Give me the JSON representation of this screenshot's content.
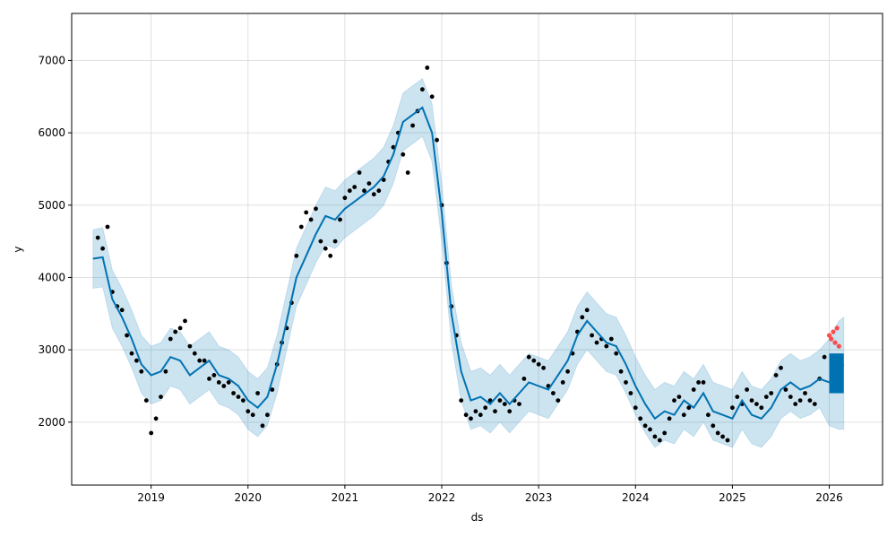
{
  "chart_data": {
    "type": "line",
    "title": "",
    "xlabel": "ds",
    "ylabel": "y",
    "xlim": [
      2018.18,
      2026.55
    ],
    "ylim": [
      1130,
      7650
    ],
    "grid": true,
    "x_ticks": [
      2019,
      2020,
      2021,
      2022,
      2023,
      2024,
      2025,
      2026
    ],
    "x_tick_labels": [
      "2019",
      "2020",
      "2021",
      "2022",
      "2023",
      "2024",
      "2025",
      "2026"
    ],
    "y_ticks": [
      2000,
      3000,
      4000,
      5000,
      6000,
      7000
    ],
    "y_tick_labels": [
      "2000",
      "3000",
      "4000",
      "5000",
      "6000",
      "7000"
    ],
    "colors": {
      "observed": "#000000",
      "forecast": "#0072B2",
      "interval": "#0072B2",
      "future": "#ff3333",
      "grid": "#e0e0e0"
    },
    "forecast_series": {
      "x": [
        2018.4,
        2018.5,
        2018.6,
        2018.7,
        2018.8,
        2018.9,
        2019.0,
        2019.1,
        2019.2,
        2019.3,
        2019.4,
        2019.5,
        2019.6,
        2019.7,
        2019.8,
        2019.9,
        2020.0,
        2020.1,
        2020.2,
        2020.3,
        2020.4,
        2020.5,
        2020.6,
        2020.7,
        2020.8,
        2020.9,
        2021.0,
        2021.1,
        2021.2,
        2021.3,
        2021.4,
        2021.5,
        2021.6,
        2021.7,
        2021.8,
        2021.9,
        2022.0,
        2022.1,
        2022.2,
        2022.3,
        2022.4,
        2022.5,
        2022.6,
        2022.7,
        2022.8,
        2022.9,
        2023.0,
        2023.1,
        2023.2,
        2023.3,
        2023.4,
        2023.5,
        2023.6,
        2023.7,
        2023.8,
        2023.9,
        2024.0,
        2024.1,
        2024.2,
        2024.3,
        2024.4,
        2024.5,
        2024.6,
        2024.7,
        2024.8,
        2024.9,
        2025.0,
        2025.1,
        2025.2,
        2025.3,
        2025.4,
        2025.5,
        2025.6,
        2025.7,
        2025.8,
        2025.9,
        2026.0,
        2026.1,
        2026.15
      ],
      "y": [
        4260,
        4280,
        3700,
        3450,
        3150,
        2800,
        2650,
        2700,
        2900,
        2850,
        2650,
        2750,
        2850,
        2650,
        2600,
        2500,
        2300,
        2200,
        2350,
        2800,
        3400,
        4000,
        4300,
        4600,
        4850,
        4800,
        4950,
        5050,
        5150,
        5250,
        5400,
        5700,
        6150,
        6250,
        6350,
        6000,
        4900,
        3500,
        2700,
        2300,
        2350,
        2250,
        2400,
        2250,
        2400,
        2550,
        2500,
        2450,
        2650,
        2850,
        3200,
        3400,
        3250,
        3100,
        3050,
        2800,
        2500,
        2250,
        2050,
        2150,
        2100,
        2300,
        2200,
        2400,
        2150,
        2100,
        2050,
        2300,
        2100,
        2050,
        2200,
        2450,
        2550,
        2450,
        2500,
        2600,
        2550,
        2750,
        2800
      ],
      "lower": [
        3850,
        3870,
        3300,
        3050,
        2750,
        2400,
        2250,
        2300,
        2500,
        2450,
        2250,
        2350,
        2450,
        2250,
        2200,
        2100,
        1900,
        1800,
        1950,
        2400,
        3000,
        3600,
        3900,
        4200,
        4450,
        4400,
        4550,
        4650,
        4750,
        4850,
        5000,
        5300,
        5750,
        5850,
        5950,
        5600,
        4500,
        3100,
        2300,
        1900,
        1950,
        1850,
        2000,
        1850,
        2000,
        2150,
        2100,
        2050,
        2250,
        2450,
        2800,
        3000,
        2850,
        2700,
        2650,
        2400,
        2100,
        1850,
        1650,
        1750,
        1700,
        1900,
        1800,
        2000,
        1750,
        1700,
        1650,
        1900,
        1700,
        1650,
        1800,
        2050,
        2150,
        2050,
        2100,
        2200,
        1950,
        1900,
        1900
      ],
      "upper": [
        4660,
        4690,
        4100,
        3850,
        3550,
        3200,
        3050,
        3100,
        3300,
        3250,
        3050,
        3150,
        3250,
        3050,
        3000,
        2900,
        2700,
        2600,
        2750,
        3200,
        3800,
        4400,
        4700,
        5000,
        5250,
        5200,
        5350,
        5450,
        5550,
        5650,
        5800,
        6100,
        6550,
        6650,
        6750,
        6400,
        5300,
        3900,
        3100,
        2700,
        2750,
        2650,
        2800,
        2650,
        2800,
        2950,
        2900,
        2850,
        3050,
        3250,
        3600,
        3800,
        3650,
        3500,
        3450,
        3200,
        2900,
        2650,
        2450,
        2550,
        2500,
        2700,
        2600,
        2800,
        2550,
        2500,
        2450,
        2700,
        2500,
        2450,
        2600,
        2850,
        2950,
        2850,
        2900,
        3000,
        3150,
        3400,
        3450
      ]
    },
    "observed_series": {
      "x": [
        2018.45,
        2018.5,
        2018.55,
        2018.6,
        2018.65,
        2018.7,
        2018.75,
        2018.8,
        2018.85,
        2018.9,
        2018.95,
        2019.0,
        2019.05,
        2019.1,
        2019.15,
        2019.2,
        2019.25,
        2019.3,
        2019.35,
        2019.4,
        2019.45,
        2019.5,
        2019.55,
        2019.6,
        2019.65,
        2019.7,
        2019.75,
        2019.8,
        2019.85,
        2019.9,
        2019.95,
        2020.0,
        2020.05,
        2020.1,
        2020.15,
        2020.2,
        2020.25,
        2020.3,
        2020.35,
        2020.4,
        2020.45,
        2020.5,
        2020.55,
        2020.6,
        2020.65,
        2020.7,
        2020.75,
        2020.8,
        2020.85,
        2020.9,
        2020.95,
        2021.0,
        2021.05,
        2021.1,
        2021.15,
        2021.2,
        2021.25,
        2021.3,
        2021.35,
        2021.4,
        2021.45,
        2021.5,
        2021.55,
        2021.6,
        2021.65,
        2021.7,
        2021.75,
        2021.8,
        2021.85,
        2021.9,
        2021.95,
        2022.0,
        2022.05,
        2022.1,
        2022.15,
        2022.2,
        2022.25,
        2022.3,
        2022.35,
        2022.4,
        2022.45,
        2022.5,
        2022.55,
        2022.6,
        2022.65,
        2022.7,
        2022.75,
        2022.8,
        2022.85,
        2022.9,
        2022.95,
        2023.0,
        2023.05,
        2023.1,
        2023.15,
        2023.2,
        2023.25,
        2023.3,
        2023.35,
        2023.4,
        2023.45,
        2023.5,
        2023.55,
        2023.6,
        2023.65,
        2023.7,
        2023.75,
        2023.8,
        2023.85,
        2023.9,
        2023.95,
        2024.0,
        2024.05,
        2024.1,
        2024.15,
        2024.2,
        2024.25,
        2024.3,
        2024.35,
        2024.4,
        2024.45,
        2024.5,
        2024.55,
        2024.6,
        2024.65,
        2024.7,
        2024.75,
        2024.8,
        2024.85,
        2024.9,
        2024.95,
        2025.0,
        2025.05,
        2025.1,
        2025.15,
        2025.2,
        2025.25,
        2025.3,
        2025.35,
        2025.4,
        2025.45,
        2025.5,
        2025.55,
        2025.6,
        2025.65,
        2025.7,
        2025.75,
        2025.8,
        2025.85,
        2025.9,
        2025.95
      ],
      "y": [
        4550,
        4400,
        4700,
        3800,
        3600,
        3550,
        3200,
        2950,
        2850,
        2700,
        2300,
        1850,
        2050,
        2350,
        2700,
        3150,
        3250,
        3300,
        3400,
        3050,
        2950,
        2850,
        2850,
        2600,
        2650,
        2550,
        2500,
        2550,
        2400,
        2350,
        2300,
        2150,
        2100,
        2400,
        1950,
        2100,
        2450,
        2800,
        3100,
        3300,
        3650,
        4300,
        4700,
        4900,
        4800,
        4950,
        4500,
        4400,
        4300,
        4500,
        4800,
        5100,
        5200,
        5250,
        5450,
        5200,
        5300,
        5150,
        5200,
        5350,
        5600,
        5800,
        6000,
        5700,
        5450,
        6100,
        6300,
        6600,
        6900,
        6500,
        5900,
        5000,
        4200,
        3600,
        3200,
        2300,
        2100,
        2050,
        2150,
        2100,
        2200,
        2300,
        2150,
        2300,
        2250,
        2150,
        2300,
        2250,
        2600,
        2900,
        2850,
        2800,
        2750,
        2500,
        2400,
        2300,
        2550,
        2700,
        2950,
        3250,
        3450,
        3550,
        3200,
        3100,
        3150,
        3050,
        3150,
        2950,
        2700,
        2550,
        2400,
        2200,
        2050,
        1950,
        1900,
        1800,
        1750,
        1850,
        2050,
        2300,
        2350,
        2100,
        2200,
        2450,
        2550,
        2550,
        2100,
        1950,
        1850,
        1800,
        1750,
        2200,
        2350,
        2250,
        2450,
        2300,
        2250,
        2200,
        2350,
        2400,
        2650,
        2750,
        2450,
        2350,
        2250,
        2300,
        2400,
        2300,
        2250,
        2600,
        2900
      ]
    },
    "future_series": {
      "x": [
        2026.0,
        2026.02,
        2026.04,
        2026.06,
        2026.08,
        2026.1
      ],
      "y": [
        3200,
        3150,
        3250,
        3100,
        3300,
        3050
      ]
    }
  }
}
